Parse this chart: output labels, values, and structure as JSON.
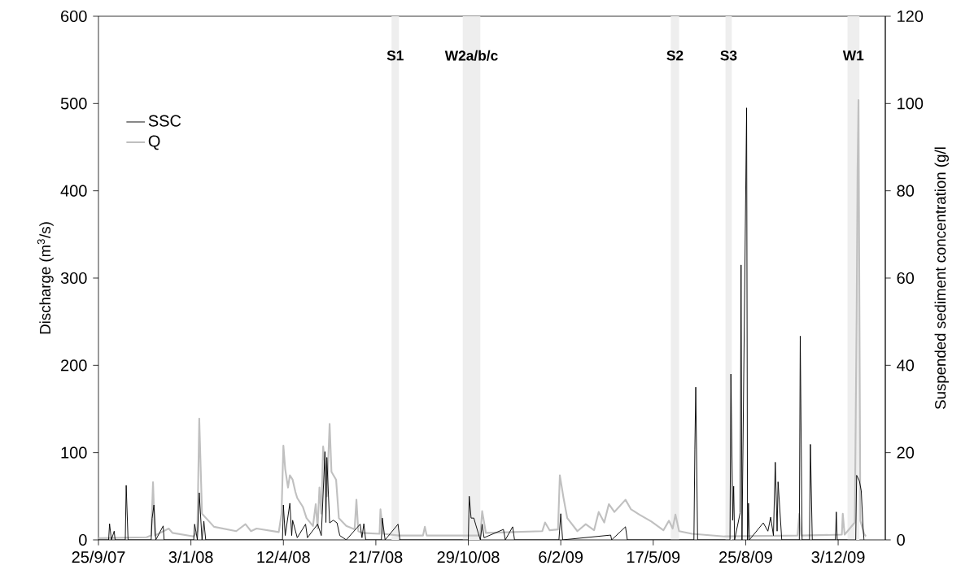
{
  "chart_data": {
    "type": "line",
    "xlabel": null,
    "ylabel": "Discharge (m$^{3}$/s)",
    "y2label": "Suspended sediment concentration (g/l",
    "xlim": [
      "2007-09-25",
      "2010-01-23"
    ],
    "xticks": [
      {
        "value": "2007-09-25",
        "label": "25/9/07"
      },
      {
        "value": "2008-01-03",
        "label": "3/1/08"
      },
      {
        "value": "2008-04-12",
        "label": "12/4/08"
      },
      {
        "value": "2008-07-21",
        "label": "21/7/08"
      },
      {
        "value": "2008-10-29",
        "label": "29/10/08"
      },
      {
        "value": "2009-02-06",
        "label": "6/2/09"
      },
      {
        "value": "2009-05-17",
        "label": "17/5/09"
      },
      {
        "value": "2009-08-25",
        "label": "25/8/09"
      },
      {
        "value": "2009-12-03",
        "label": "3/12/09"
      }
    ],
    "ylim": [
      0,
      600
    ],
    "yticks": [
      0,
      100,
      200,
      300,
      400,
      500,
      600
    ],
    "y2lim": [
      0,
      120
    ],
    "y2ticks": [
      0,
      20,
      40,
      60,
      80,
      100,
      120
    ],
    "legend": "top left",
    "bands": [
      {
        "axis": "x",
        "from": "2008-08-07",
        "to": "2008-08-15",
        "label": "S1",
        "color": "#eeeeee"
      },
      {
        "axis": "x",
        "from": "2008-10-23",
        "to": "2008-11-11",
        "label": "W2a/b/c",
        "color": "#eeeeee"
      },
      {
        "axis": "x",
        "from": "2009-06-05",
        "to": "2009-06-14",
        "label": "S2",
        "color": "#eeeeee"
      },
      {
        "axis": "x",
        "from": "2009-08-03",
        "to": "2009-08-10",
        "label": "S3",
        "color": "#eeeeee"
      },
      {
        "axis": "x",
        "from": "2009-12-13",
        "to": "2009-12-26",
        "label": "W1",
        "color": "#eeeeee"
      }
    ],
    "series": [
      {
        "name": "SSC",
        "color": "#000000",
        "axis": "y2",
        "x": [
          "2007-09-25",
          "2007-10-06",
          "2007-10-07",
          "2007-10-09",
          "2007-10-12",
          "2007-10-13",
          "2007-10-24",
          "2007-10-25",
          "2007-10-27",
          "2007-11-21",
          "2007-11-22",
          "2007-11-24",
          "2007-11-26",
          "2007-12-04",
          "2007-12-05",
          "2008-01-06",
          "2008-01-07",
          "2008-01-10",
          "2008-01-12",
          "2008-01-15",
          "2008-01-17",
          "2008-01-19",
          "2008-04-11",
          "2008-04-12",
          "2008-04-14",
          "2008-04-19",
          "2008-04-21",
          "2008-04-22",
          "2008-04-27",
          "2008-05-06",
          "2008-05-08",
          "2008-05-19",
          "2008-05-23",
          "2008-05-27",
          "2008-05-28",
          "2008-05-29",
          "2008-06-01",
          "2008-06-05",
          "2008-06-09",
          "2008-06-12",
          "2008-06-19",
          "2008-07-04",
          "2008-07-06",
          "2008-07-08",
          "2008-07-10",
          "2008-07-27",
          "2008-07-28",
          "2008-07-31",
          "2008-08-14",
          "2008-08-16",
          "2008-10-29",
          "2008-10-30",
          "2008-11-01",
          "2008-11-04",
          "2008-11-06",
          "2008-11-11",
          "2008-11-13",
          "2008-11-15",
          "2008-12-06",
          "2008-12-08",
          "2008-12-16",
          "2008-12-18",
          "2009-02-04",
          "2009-02-06",
          "2009-02-08",
          "2009-04-01",
          "2009-04-02",
          "2009-04-17",
          "2009-04-19",
          "2009-06-30",
          "2009-07-01",
          "2009-07-02",
          "2009-07-04",
          "2009-08-08",
          "2009-08-09",
          "2009-08-11",
          "2009-08-12",
          "2009-08-13",
          "2009-08-19",
          "2009-08-20",
          "2009-08-21",
          "2009-08-26",
          "2009-08-27",
          "2009-08-28",
          "2009-08-29",
          "2009-09-13",
          "2009-09-18",
          "2009-09-21",
          "2009-09-24",
          "2009-09-26",
          "2009-09-28",
          "2009-09-29",
          "2009-10-01",
          "2009-10-03",
          "2009-10-22",
          "2009-10-23",
          "2009-10-25",
          "2009-11-02",
          "2009-11-03",
          "2009-11-05",
          "2009-11-30",
          "2009-12-01",
          "2009-12-02",
          "2009-12-22",
          "2009-12-23",
          "2009-12-26",
          "2009-12-28",
          "2009-12-30",
          "2009-12-31"
        ],
        "values": [
          0,
          0,
          3.7,
          0,
          2,
          0,
          0,
          12.5,
          0,
          0,
          4.9,
          8,
          0,
          3.2,
          0,
          0,
          3.6,
          0,
          10.8,
          0,
          4.3,
          0,
          0,
          8,
          1,
          8.4,
          1,
          4.5,
          0.5,
          3.6,
          0.5,
          3.6,
          1,
          20.2,
          4,
          18.9,
          3.9,
          4.5,
          3.9,
          1,
          0,
          3.6,
          0.5,
          3.7,
          0,
          0,
          5,
          0,
          3.6,
          0,
          0,
          10,
          5,
          5,
          3.5,
          0,
          3.6,
          0.5,
          2.4,
          0,
          3,
          0,
          0,
          6,
          0,
          1.1,
          0,
          3,
          0,
          0,
          20.7,
          35,
          0,
          0,
          38,
          4.5,
          12.3,
          0,
          6.2,
          63,
          0,
          99,
          0,
          8.4,
          0,
          3.9,
          2,
          5.2,
          1,
          17.8,
          2,
          13.3,
          6.7,
          0,
          0,
          46.7,
          0,
          0,
          21.9,
          0,
          0,
          6.4,
          0,
          0,
          14.8,
          13.5,
          11.2,
          2.6,
          0
        ]
      },
      {
        "name": "Q",
        "color": "#c0c0c0",
        "x": [
          "2007-09-25",
          "2007-11-16",
          "2007-11-21",
          "2007-11-23",
          "2007-11-25",
          "2007-12-10",
          "2007-12-14",
          "2008-01-06",
          "2008-01-10",
          "2008-01-12",
          "2008-01-15",
          "2008-01-28",
          "2008-02-21",
          "2008-03-02",
          "2008-03-08",
          "2008-03-14",
          "2008-04-07",
          "2008-04-10",
          "2008-04-12",
          "2008-04-14",
          "2008-04-17",
          "2008-04-19",
          "2008-04-22",
          "2008-04-25",
          "2008-04-27",
          "2008-05-03",
          "2008-05-07",
          "2008-05-14",
          "2008-05-17",
          "2008-05-19",
          "2008-05-21",
          "2008-05-23",
          "2008-05-25",
          "2008-05-28",
          "2008-05-29",
          "2008-06-01",
          "2008-06-03",
          "2008-06-08",
          "2008-06-11",
          "2008-06-19",
          "2008-06-28",
          "2008-06-30",
          "2008-07-02",
          "2008-07-06",
          "2008-07-25",
          "2008-07-26",
          "2008-07-29",
          "2008-08-15",
          "2008-09-10",
          "2008-09-12",
          "2008-09-14",
          "2008-11-11",
          "2008-11-13",
          "2008-11-17",
          "2009-01-17",
          "2009-01-20",
          "2009-01-25",
          "2009-02-03",
          "2009-02-05",
          "2009-02-09",
          "2009-02-13",
          "2009-02-24",
          "2009-03-05",
          "2009-03-14",
          "2009-03-19",
          "2009-03-25",
          "2009-03-30",
          "2009-04-05",
          "2009-04-17",
          "2009-04-23",
          "2009-05-02",
          "2009-05-15",
          "2009-05-28",
          "2009-06-03",
          "2009-06-07",
          "2009-06-10",
          "2009-06-14",
          "2009-06-28",
          "2009-08-02",
          "2009-10-20",
          "2009-10-22",
          "2009-10-24",
          "2009-12-07",
          "2009-12-08",
          "2009-12-10",
          "2009-12-21",
          "2009-12-23",
          "2009-12-24",
          "2009-12-25",
          "2009-12-27",
          "2009-12-31",
          "2010-01-02"
        ],
        "values": [
          2,
          3,
          5,
          66,
          5,
          13,
          8,
          4,
          10,
          139,
          30,
          15,
          10,
          18,
          10,
          13,
          9,
          30,
          108,
          81,
          60,
          74,
          69,
          55,
          48,
          38,
          25,
          16,
          41,
          13,
          60,
          30,
          107,
          78,
          50,
          133,
          78,
          69,
          25,
          16,
          12,
          46,
          10,
          8,
          7,
          35,
          7,
          5,
          5,
          15,
          5,
          5,
          33,
          8,
          10,
          20,
          11,
          12,
          74,
          48,
          25,
          10,
          18,
          11,
          32,
          20,
          41,
          32,
          46,
          35,
          29,
          21,
          11,
          22,
          13,
          29,
          10,
          7,
          4,
          5,
          30,
          5,
          6,
          30,
          6,
          20,
          256,
          424,
          504,
          22,
          7,
          4
        ]
      }
    ]
  }
}
